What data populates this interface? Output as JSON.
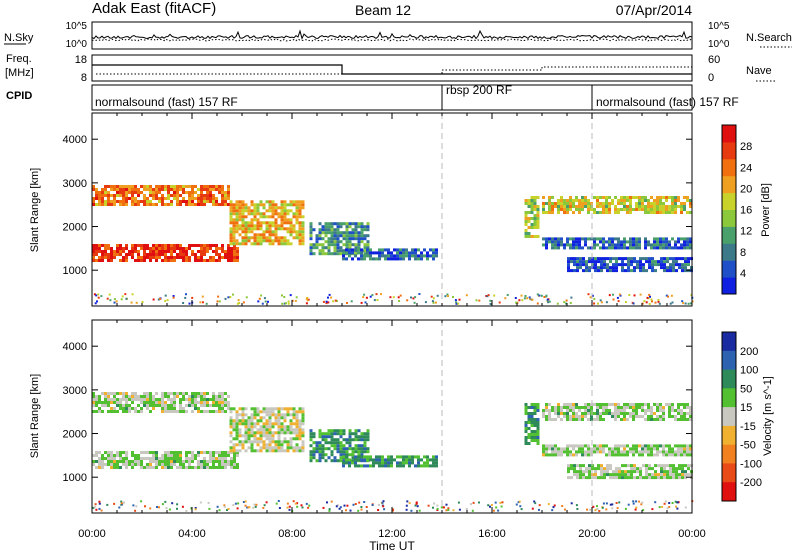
{
  "header": {
    "station": "Adak East (fitACF)",
    "beam": "Beam 12",
    "date": "07/Apr/2014"
  },
  "noise_panel": {
    "left_label": "N.Sky",
    "left_ticks": [
      "10^5",
      "10^0"
    ],
    "right_label": "N.Search",
    "right_ticks": [
      "10^5",
      "10^0"
    ]
  },
  "freq_panel": {
    "left_label_1": "Freq.",
    "left_label_2": "[MHz]",
    "left_ticks": [
      "18",
      "8"
    ],
    "right_label": "Nave",
    "right_ticks": [
      "60",
      "0"
    ]
  },
  "cpid_panel": {
    "label": "CPID",
    "segments": [
      {
        "name": "normalsound (fast) 157 RF",
        "start_h": 0,
        "end_h": 14
      },
      {
        "name": "rbsp 200 RF",
        "start_h": 14,
        "end_h": 20
      },
      {
        "name": "normalsound (fast) 157 RF",
        "start_h": 20,
        "end_h": 24
      }
    ]
  },
  "chart_data": [
    {
      "type": "heatmap",
      "name": "power",
      "ylabel": "Slant Range [km]",
      "yticks": [
        1000,
        2000,
        3000,
        4000
      ],
      "ylim": [
        180,
        4600
      ],
      "xlim": [
        0,
        24
      ],
      "colorbar": {
        "label": "Power [dB]",
        "ticks": [
          "4",
          "8",
          "12",
          "16",
          "20",
          "24",
          "28"
        ],
        "colors": [
          "#1020e0",
          "#2050c8",
          "#3c7a8a",
          "#4aa06a",
          "#8cc83c",
          "#c8d22a",
          "#f0a020",
          "#f07010",
          "#e83a10",
          "#e01010"
        ]
      },
      "echo_bands": [
        {
          "t0": 0.0,
          "t1": 5.5,
          "r0": 2500,
          "r1": 2950,
          "level": 0.75
        },
        {
          "t0": 0.0,
          "t1": 5.8,
          "r0": 1250,
          "r1": 1600,
          "level": 0.9
        },
        {
          "t0": 5.5,
          "t1": 8.5,
          "r0": 1600,
          "r1": 2600,
          "level": 0.6
        },
        {
          "t0": 8.7,
          "t1": 11.0,
          "r0": 1400,
          "r1": 2100,
          "level": 0.3
        },
        {
          "t0": 10.0,
          "t1": 13.8,
          "r0": 1250,
          "r1": 1500,
          "level": 0.2
        },
        {
          "t0": 17.3,
          "t1": 17.8,
          "r0": 1800,
          "r1": 2700,
          "level": 0.5
        },
        {
          "t0": 18.0,
          "t1": 24.0,
          "r0": 2300,
          "r1": 2700,
          "level": 0.55
        },
        {
          "t0": 18.0,
          "t1": 24.0,
          "r0": 1500,
          "r1": 1750,
          "level": 0.2
        },
        {
          "t0": 19.0,
          "t1": 24.0,
          "r0": 1000,
          "r1": 1300,
          "level": 0.15
        }
      ]
    },
    {
      "type": "heatmap",
      "name": "velocity",
      "ylabel": "Slant Range [km]",
      "yticks": [
        1000,
        2000,
        3000,
        4000
      ],
      "ylim": [
        180,
        4600
      ],
      "xlim": [
        0,
        24
      ],
      "xlabel": "Time UT",
      "xticks": [
        "00:00",
        "04:00",
        "08:00",
        "12:00",
        "16:00",
        "20:00",
        "00:00"
      ],
      "colorbar": {
        "label": "Velocity [m s^-1]",
        "ticks": [
          "200",
          "100",
          "50",
          "15",
          "-15",
          "-50",
          "-100",
          "-200"
        ],
        "colors": [
          "#1a2aa0",
          "#2c62b0",
          "#2f8a5a",
          "#52c030",
          "#c8c8c0",
          "#f0b030",
          "#f08020",
          "#e84a18",
          "#e01010"
        ]
      },
      "echo_bands": [
        {
          "t0": 0.0,
          "t1": 5.5,
          "r0": 2500,
          "r1": 2950,
          "level": 0.45
        },
        {
          "t0": 0.0,
          "t1": 5.8,
          "r0": 1250,
          "r1": 1600,
          "level": 0.45
        },
        {
          "t0": 5.5,
          "t1": 8.5,
          "r0": 1600,
          "r1": 2600,
          "level": 0.5
        },
        {
          "t0": 8.7,
          "t1": 11.0,
          "r0": 1400,
          "r1": 2100,
          "level": 0.3
        },
        {
          "t0": 10.0,
          "t1": 13.8,
          "r0": 1250,
          "r1": 1500,
          "level": 0.3
        },
        {
          "t0": 17.3,
          "t1": 17.8,
          "r0": 1800,
          "r1": 2700,
          "level": 0.3
        },
        {
          "t0": 18.0,
          "t1": 24.0,
          "r0": 2300,
          "r1": 2700,
          "level": 0.45
        },
        {
          "t0": 18.0,
          "t1": 24.0,
          "r0": 1500,
          "r1": 1750,
          "level": 0.45
        },
        {
          "t0": 19.0,
          "t1": 24.0,
          "r0": 1000,
          "r1": 1300,
          "level": 0.45
        }
      ]
    }
  ]
}
